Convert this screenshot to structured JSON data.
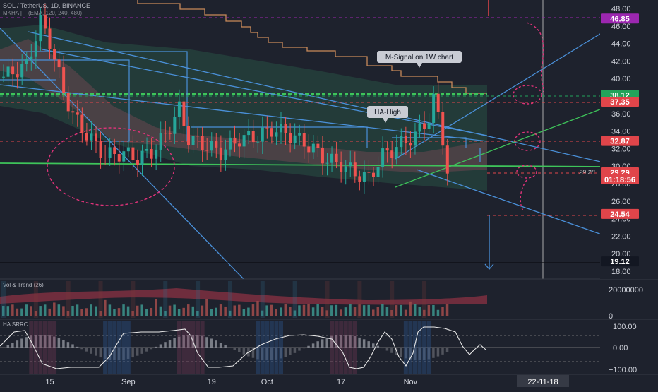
{
  "symbol_header": "SOL / TetherUS, 1D, BINANCE",
  "indicator_header": "MKHA | T (EMA, 120, 240, 480)",
  "volume_pane_label": "Vol & Trend (26)",
  "oscillator_pane_label": "HA SRRC",
  "annotations": {
    "m_signal": "M-Signal on 1W chart",
    "ha_high": "HA-High"
  },
  "price_tags": [
    {
      "label": "46.85",
      "color": "#9c27b0",
      "value": 46.85
    },
    {
      "label": "38.12",
      "color": "#22a35a",
      "value": 38.12
    },
    {
      "label": "37.35",
      "color": "#e0454a",
      "value": 37.35
    },
    {
      "label": "32.87",
      "color": "#e0454a",
      "value": 32.87
    },
    {
      "label": "29.29",
      "color": "#e0454a",
      "value": 29.29
    },
    {
      "label": "01:18:56",
      "color": "#e0454a",
      "value": 28.5
    },
    {
      "label": "24.54",
      "color": "#e0454a",
      "value": 24.54
    },
    {
      "label": "19.12",
      "color": "#131722",
      "value": 19.12
    }
  ],
  "last_close_label": "29.28",
  "volume_axis": {
    "label_top": "20000000",
    "label_bottom": "0"
  },
  "oscillator_axis": {
    "top": "100.00",
    "mid": "0.00",
    "bottom": "−100.00"
  },
  "x_axis_labels": [
    "15",
    "Sep",
    "19",
    "Oct",
    "17",
    "Nov"
  ],
  "cursor_date": "22-11-18",
  "chart_data": {
    "type": "candlestick",
    "price_axis": {
      "ticks": [
        "48.00",
        "46.00",
        "44.00",
        "42.00",
        "40.00",
        "38.00",
        "36.00",
        "34.00",
        "32.00",
        "30.00",
        "28.00",
        "26.00",
        "24.00",
        "22.00",
        "20.00",
        "18.00"
      ],
      "ylim": [
        17.5,
        49.5
      ]
    },
    "x_axis": {
      "ticks": [
        "15",
        "Sep",
        "19",
        "Oct",
        "17",
        "Nov"
      ],
      "range": [
        "2022-08-05",
        "2022-11-20"
      ]
    },
    "close_series_approx": {
      "x": [
        "2022-08-05",
        "2022-08-10",
        "2022-08-13",
        "2022-08-15",
        "2022-08-18",
        "2022-08-20",
        "2022-08-23",
        "2022-08-27",
        "2022-08-31",
        "2022-09-03",
        "2022-09-06",
        "2022-09-09",
        "2022-09-12",
        "2022-09-14",
        "2022-09-17",
        "2022-09-21",
        "2022-09-25",
        "2022-09-29",
        "2022-10-02",
        "2022-10-05",
        "2022-10-09",
        "2022-10-12",
        "2022-10-14",
        "2022-10-17",
        "2022-10-20",
        "2022-10-23",
        "2022-10-26",
        "2022-10-29",
        "2022-11-02",
        "2022-11-05",
        "2022-11-06",
        "2022-11-07",
        "2022-11-08",
        "2022-11-09"
      ],
      "values": [
        40.2,
        41.5,
        46.5,
        44.2,
        38.5,
        35.8,
        33.6,
        31.2,
        31.5,
        30.9,
        31.6,
        33.6,
        36.5,
        33.2,
        32.5,
        31.6,
        33.1,
        33.4,
        34.2,
        33.8,
        32.7,
        31.5,
        30.7,
        30.2,
        29.2,
        28.6,
        31.2,
        32.2,
        33.5,
        35.5,
        37.5,
        35.8,
        33.2,
        29.3
      ]
    },
    "horizontal_levels": [
      {
        "value": 38.12,
        "color": "#22a35a"
      },
      {
        "value": 37.35,
        "color": "#e0454a"
      },
      {
        "value": 32.87,
        "color": "#e0454a"
      },
      {
        "value": 29.29,
        "color": "#e0454a"
      },
      {
        "value": 24.54,
        "color": "#e0454a"
      },
      {
        "value": 46.85,
        "color": "#9c27b0"
      }
    ],
    "colors": {
      "up": "#26a69a",
      "down": "#ef5350",
      "m_signal": "#c98a5a",
      "support": "#3ec45a",
      "trendline": "#4a90d9"
    }
  }
}
